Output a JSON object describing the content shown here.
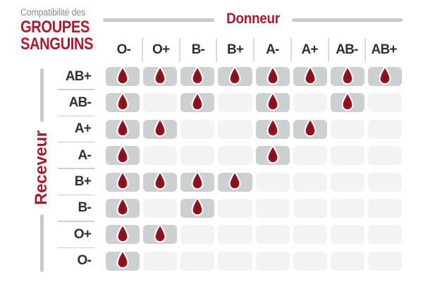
{
  "title": {
    "kicker": "Compatibilité des",
    "line1": "GROUPES",
    "line2": "SANGUINS"
  },
  "axes": {
    "donor": "Donneur",
    "receiver": "Receveur"
  },
  "chart_data": {
    "type": "heatmap",
    "title": "Compatibilité des groupes sanguins",
    "x_axis_label": "Donneur",
    "y_axis_label": "Receveur",
    "columns": [
      "O-",
      "O+",
      "B-",
      "B+",
      "A-",
      "A+",
      "AB-",
      "AB+"
    ],
    "rows": [
      "AB+",
      "AB-",
      "A+",
      "A-",
      "B+",
      "B-",
      "O+",
      "O-"
    ],
    "cell_marker": "blood-drop-icon",
    "marker_meaning": "compatible",
    "matrix": [
      [
        1,
        1,
        1,
        1,
        1,
        1,
        1,
        1
      ],
      [
        1,
        0,
        1,
        0,
        1,
        0,
        1,
        0
      ],
      [
        1,
        1,
        0,
        0,
        1,
        1,
        0,
        0
      ],
      [
        1,
        0,
        0,
        0,
        1,
        0,
        0,
        0
      ],
      [
        1,
        1,
        1,
        1,
        0,
        0,
        0,
        0
      ],
      [
        1,
        0,
        1,
        0,
        0,
        0,
        0,
        0
      ],
      [
        1,
        1,
        0,
        0,
        0,
        0,
        0,
        0
      ],
      [
        1,
        0,
        0,
        0,
        0,
        0,
        0,
        0
      ]
    ]
  },
  "colors": {
    "accent_red": "#A41D30",
    "drop_red_edge": "#B2182C",
    "drop_red_core": "#7E1120",
    "drop_outline": "#FFFFFF",
    "cell_filled": "#CDD0D0",
    "cell_empty": "#F3F3F4",
    "kicker_gray": "#8C8C8C",
    "label_dark": "#303030",
    "axis_line_gray": "#C7CACA"
  }
}
